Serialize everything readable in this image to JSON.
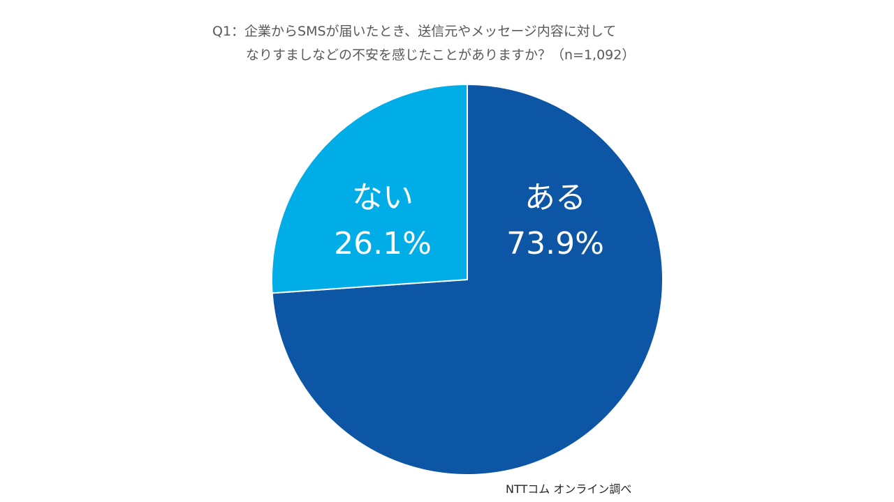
{
  "chart_data": {
    "type": "pie",
    "title_line1": "Q1：企業からSMSが届いたとき、送信元やメッセージ内容に対して",
    "title_line2": "なりすましなどの不安を感じたことがありますか？（n=1,092）",
    "slices": [
      {
        "label": "ある",
        "value": 73.9,
        "value_label": "73.9%",
        "color": "#0D56A6"
      },
      {
        "label": "ない",
        "value": 26.1,
        "value_label": "26.1%",
        "color": "#00ADE6"
      }
    ],
    "start_angle": "12 o'clock",
    "direction": "clockwise"
  },
  "source": "NTTコム オンライン調べ"
}
